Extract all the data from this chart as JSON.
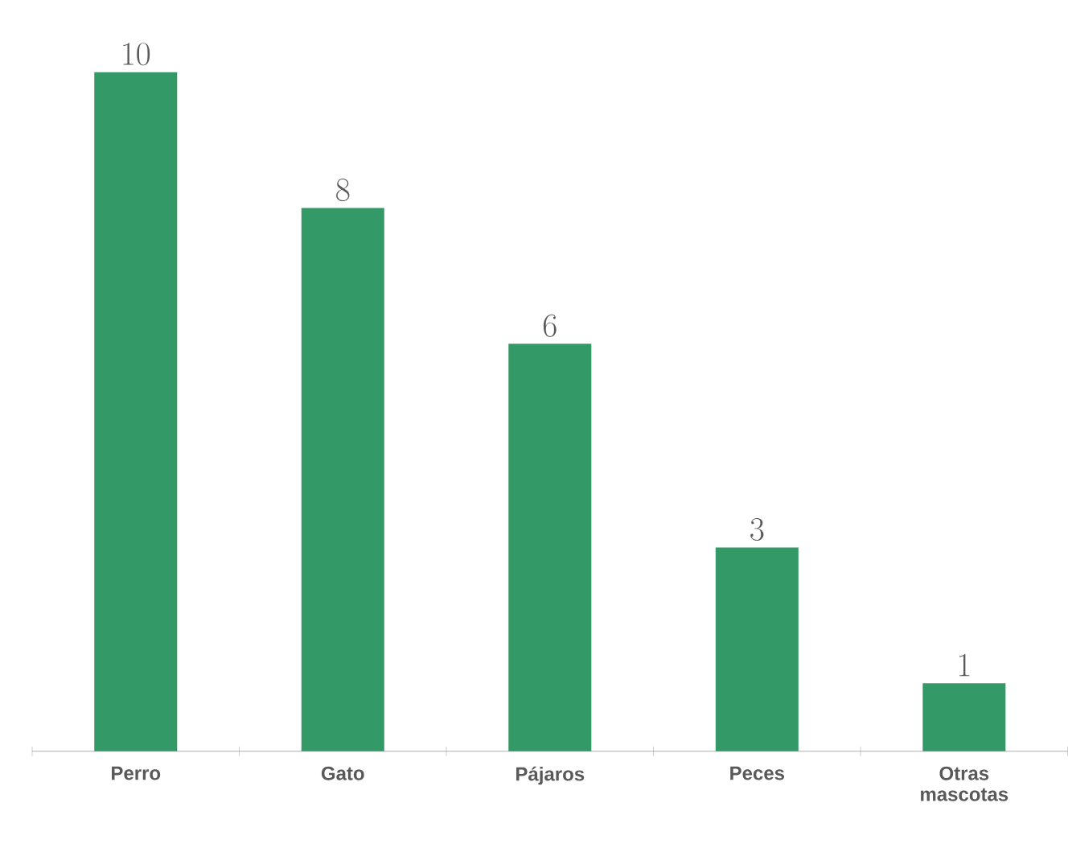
{
  "chart_data": {
    "type": "bar",
    "categories": [
      "Perro",
      "Gato",
      "Pájaros",
      "Peces",
      "Otras mascotas"
    ],
    "values": [
      10,
      8,
      6,
      3,
      1
    ],
    "color": "#339966",
    "data_labels": true
  }
}
